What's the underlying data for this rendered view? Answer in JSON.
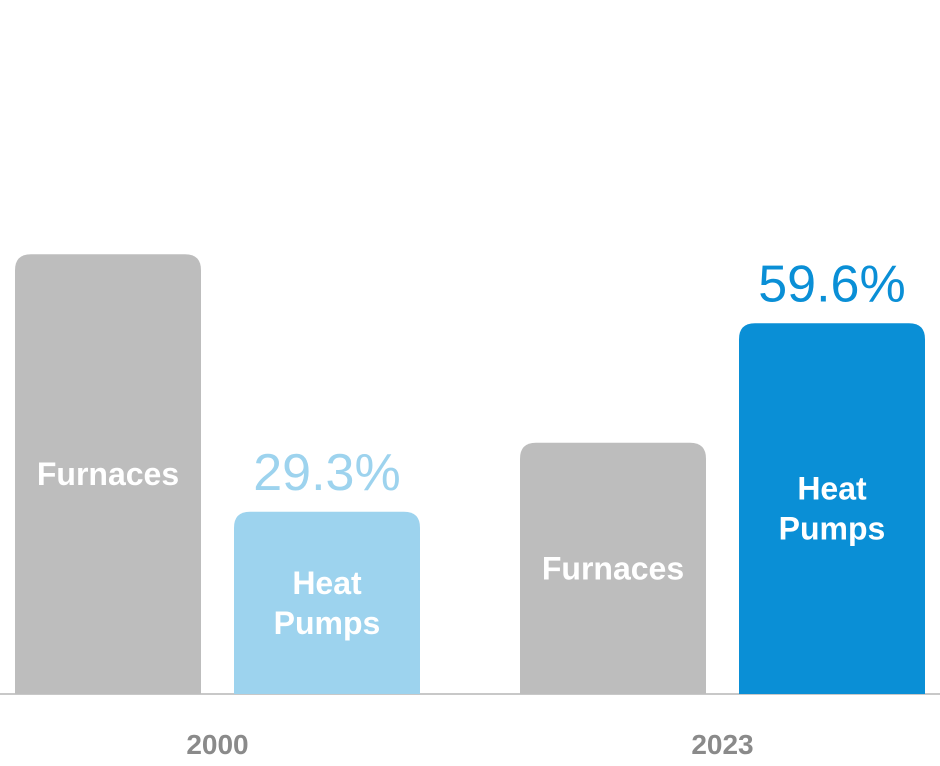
{
  "chart_data": {
    "type": "bar",
    "categories": [
      "2000",
      "2023"
    ],
    "series": [
      {
        "label_lines": [
          "Furnaces"
        ],
        "values": [
          70.7,
          40.4
        ],
        "colors": [
          "#bdbdbd",
          "#bdbdbd"
        ]
      },
      {
        "label_lines": [
          "Heat",
          "Pumps"
        ],
        "values": [
          29.3,
          59.6
        ],
        "value_labels": [
          "29.3%",
          "59.6%"
        ],
        "colors": [
          "#9dd3ee",
          "#0a8fd6"
        ],
        "value_label_colors": [
          "#9dd3ee",
          "#0a8fd6"
        ]
      }
    ],
    "ylim": [
      0,
      100
    ],
    "title": "",
    "xlabel": "",
    "ylabel": "",
    "grid": false,
    "legend": "none"
  }
}
